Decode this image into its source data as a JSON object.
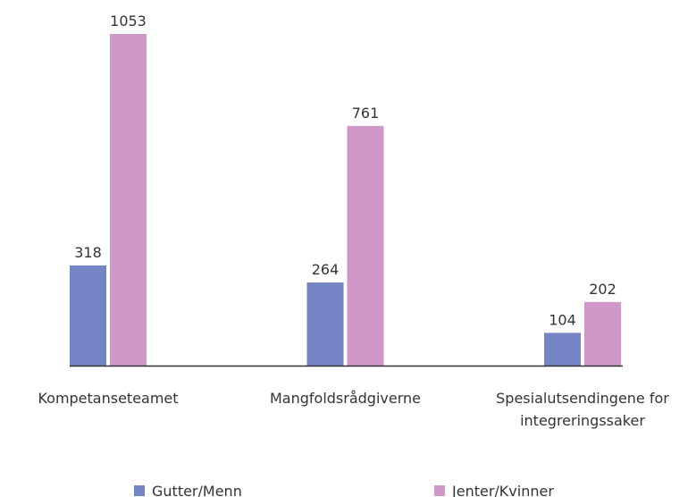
{
  "chart_data": {
    "type": "bar",
    "categories": [
      "Kompetanseteamet",
      "Mangfoldsrådgiverne",
      "Spesialutsendingene for integreringssaker"
    ],
    "series": [
      {
        "name": "Gutter/Menn",
        "color": "#7584c4",
        "values": [
          318,
          264,
          104
        ]
      },
      {
        "name": "Jenter/Kvinner",
        "color": "#d098c8",
        "values": [
          1053,
          761,
          202
        ]
      }
    ],
    "legend": "bottom"
  }
}
